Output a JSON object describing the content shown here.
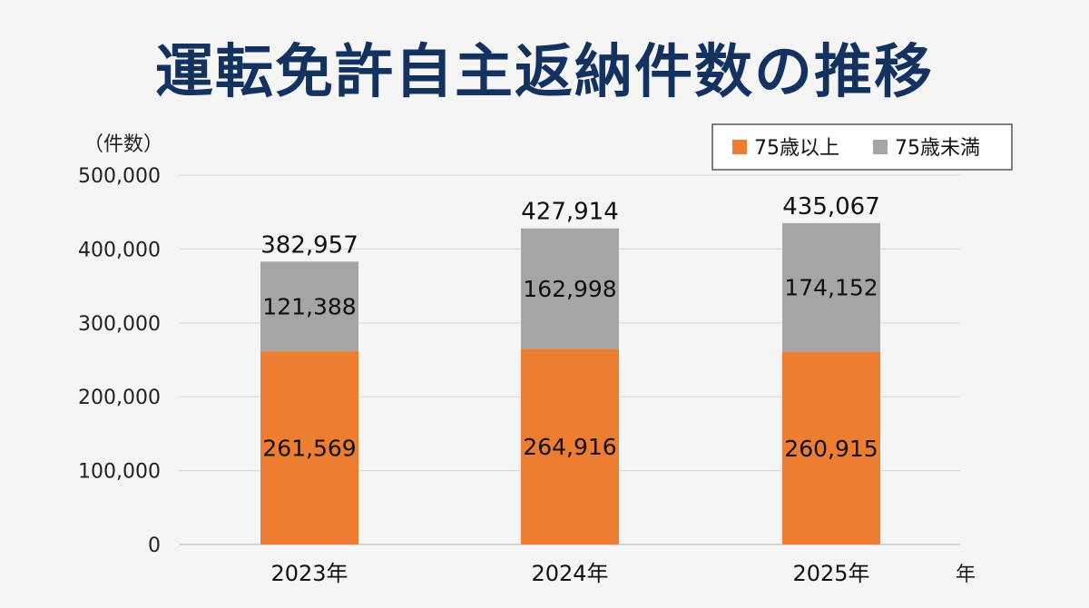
{
  "title": "運転免許自主返納件数の推移",
  "chart_data": {
    "type": "bar",
    "stacked": true,
    "categories": [
      "2023年",
      "2024年",
      "2025年"
    ],
    "series": [
      {
        "name": "75歳以上",
        "color": "#ed7d31",
        "values": [
          261569,
          264916,
          260915
        ]
      },
      {
        "name": "75歳未満",
        "color": "#a5a5a5",
        "values": [
          121388,
          162998,
          174152
        ]
      }
    ],
    "totals": [
      382957,
      427914,
      435067
    ],
    "value_labels": {
      "75歳以上": [
        "261,569",
        "264,916",
        "260,915"
      ],
      "75歳未満": [
        "121,388",
        "162,998",
        "174,152"
      ],
      "totals": [
        "382,957",
        "427,914",
        "435,067"
      ]
    },
    "y_ticks": [
      "0",
      "100,000",
      "200,000",
      "300,000",
      "400,000",
      "500,000"
    ],
    "ylim": [
      0,
      500000
    ],
    "ylabel": "（件数）",
    "xlabel": "年",
    "grid": true,
    "legend_position": "top-right"
  }
}
